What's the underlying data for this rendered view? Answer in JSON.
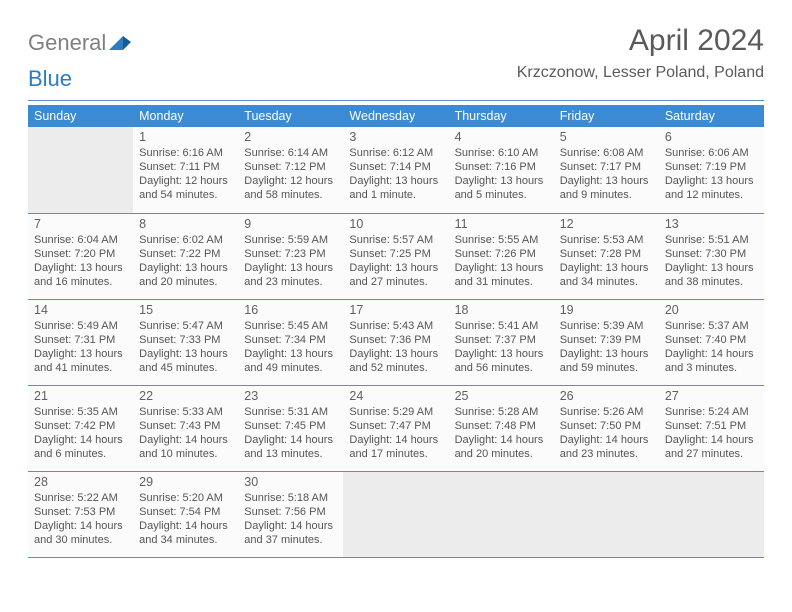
{
  "logo": {
    "general": "General",
    "blue": "Blue"
  },
  "header": {
    "title": "April 2024",
    "subtitle": "Krzczonow, Lesser Poland, Poland"
  },
  "colors": {
    "header_bg": "#3b8bd4",
    "border": "#5a8fc4",
    "empty_bg": "#ececec",
    "cell_bg": "#fbfbfb",
    "text": "#555555"
  },
  "dow": [
    "Sunday",
    "Monday",
    "Tuesday",
    "Wednesday",
    "Thursday",
    "Friday",
    "Saturday"
  ],
  "weeks": [
    [
      null,
      {
        "n": "1",
        "sr": "Sunrise: 6:16 AM",
        "ss": "Sunset: 7:11 PM",
        "d1": "Daylight: 12 hours",
        "d2": "and 54 minutes."
      },
      {
        "n": "2",
        "sr": "Sunrise: 6:14 AM",
        "ss": "Sunset: 7:12 PM",
        "d1": "Daylight: 12 hours",
        "d2": "and 58 minutes."
      },
      {
        "n": "3",
        "sr": "Sunrise: 6:12 AM",
        "ss": "Sunset: 7:14 PM",
        "d1": "Daylight: 13 hours",
        "d2": "and 1 minute."
      },
      {
        "n": "4",
        "sr": "Sunrise: 6:10 AM",
        "ss": "Sunset: 7:16 PM",
        "d1": "Daylight: 13 hours",
        "d2": "and 5 minutes."
      },
      {
        "n": "5",
        "sr": "Sunrise: 6:08 AM",
        "ss": "Sunset: 7:17 PM",
        "d1": "Daylight: 13 hours",
        "d2": "and 9 minutes."
      },
      {
        "n": "6",
        "sr": "Sunrise: 6:06 AM",
        "ss": "Sunset: 7:19 PM",
        "d1": "Daylight: 13 hours",
        "d2": "and 12 minutes."
      }
    ],
    [
      {
        "n": "7",
        "sr": "Sunrise: 6:04 AM",
        "ss": "Sunset: 7:20 PM",
        "d1": "Daylight: 13 hours",
        "d2": "and 16 minutes."
      },
      {
        "n": "8",
        "sr": "Sunrise: 6:02 AM",
        "ss": "Sunset: 7:22 PM",
        "d1": "Daylight: 13 hours",
        "d2": "and 20 minutes."
      },
      {
        "n": "9",
        "sr": "Sunrise: 5:59 AM",
        "ss": "Sunset: 7:23 PM",
        "d1": "Daylight: 13 hours",
        "d2": "and 23 minutes."
      },
      {
        "n": "10",
        "sr": "Sunrise: 5:57 AM",
        "ss": "Sunset: 7:25 PM",
        "d1": "Daylight: 13 hours",
        "d2": "and 27 minutes."
      },
      {
        "n": "11",
        "sr": "Sunrise: 5:55 AM",
        "ss": "Sunset: 7:26 PM",
        "d1": "Daylight: 13 hours",
        "d2": "and 31 minutes."
      },
      {
        "n": "12",
        "sr": "Sunrise: 5:53 AM",
        "ss": "Sunset: 7:28 PM",
        "d1": "Daylight: 13 hours",
        "d2": "and 34 minutes."
      },
      {
        "n": "13",
        "sr": "Sunrise: 5:51 AM",
        "ss": "Sunset: 7:30 PM",
        "d1": "Daylight: 13 hours",
        "d2": "and 38 minutes."
      }
    ],
    [
      {
        "n": "14",
        "sr": "Sunrise: 5:49 AM",
        "ss": "Sunset: 7:31 PM",
        "d1": "Daylight: 13 hours",
        "d2": "and 41 minutes."
      },
      {
        "n": "15",
        "sr": "Sunrise: 5:47 AM",
        "ss": "Sunset: 7:33 PM",
        "d1": "Daylight: 13 hours",
        "d2": "and 45 minutes."
      },
      {
        "n": "16",
        "sr": "Sunrise: 5:45 AM",
        "ss": "Sunset: 7:34 PM",
        "d1": "Daylight: 13 hours",
        "d2": "and 49 minutes."
      },
      {
        "n": "17",
        "sr": "Sunrise: 5:43 AM",
        "ss": "Sunset: 7:36 PM",
        "d1": "Daylight: 13 hours",
        "d2": "and 52 minutes."
      },
      {
        "n": "18",
        "sr": "Sunrise: 5:41 AM",
        "ss": "Sunset: 7:37 PM",
        "d1": "Daylight: 13 hours",
        "d2": "and 56 minutes."
      },
      {
        "n": "19",
        "sr": "Sunrise: 5:39 AM",
        "ss": "Sunset: 7:39 PM",
        "d1": "Daylight: 13 hours",
        "d2": "and 59 minutes."
      },
      {
        "n": "20",
        "sr": "Sunrise: 5:37 AM",
        "ss": "Sunset: 7:40 PM",
        "d1": "Daylight: 14 hours",
        "d2": "and 3 minutes."
      }
    ],
    [
      {
        "n": "21",
        "sr": "Sunrise: 5:35 AM",
        "ss": "Sunset: 7:42 PM",
        "d1": "Daylight: 14 hours",
        "d2": "and 6 minutes."
      },
      {
        "n": "22",
        "sr": "Sunrise: 5:33 AM",
        "ss": "Sunset: 7:43 PM",
        "d1": "Daylight: 14 hours",
        "d2": "and 10 minutes."
      },
      {
        "n": "23",
        "sr": "Sunrise: 5:31 AM",
        "ss": "Sunset: 7:45 PM",
        "d1": "Daylight: 14 hours",
        "d2": "and 13 minutes."
      },
      {
        "n": "24",
        "sr": "Sunrise: 5:29 AM",
        "ss": "Sunset: 7:47 PM",
        "d1": "Daylight: 14 hours",
        "d2": "and 17 minutes."
      },
      {
        "n": "25",
        "sr": "Sunrise: 5:28 AM",
        "ss": "Sunset: 7:48 PM",
        "d1": "Daylight: 14 hours",
        "d2": "and 20 minutes."
      },
      {
        "n": "26",
        "sr": "Sunrise: 5:26 AM",
        "ss": "Sunset: 7:50 PM",
        "d1": "Daylight: 14 hours",
        "d2": "and 23 minutes."
      },
      {
        "n": "27",
        "sr": "Sunrise: 5:24 AM",
        "ss": "Sunset: 7:51 PM",
        "d1": "Daylight: 14 hours",
        "d2": "and 27 minutes."
      }
    ],
    [
      {
        "n": "28",
        "sr": "Sunrise: 5:22 AM",
        "ss": "Sunset: 7:53 PM",
        "d1": "Daylight: 14 hours",
        "d2": "and 30 minutes."
      },
      {
        "n": "29",
        "sr": "Sunrise: 5:20 AM",
        "ss": "Sunset: 7:54 PM",
        "d1": "Daylight: 14 hours",
        "d2": "and 34 minutes."
      },
      {
        "n": "30",
        "sr": "Sunrise: 5:18 AM",
        "ss": "Sunset: 7:56 PM",
        "d1": "Daylight: 14 hours",
        "d2": "and 37 minutes."
      },
      null,
      null,
      null,
      null
    ]
  ]
}
